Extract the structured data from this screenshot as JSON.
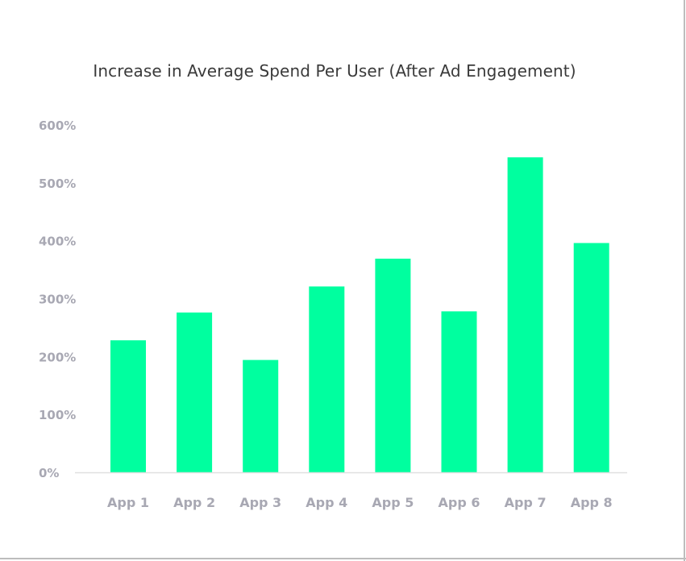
{
  "chart_data": {
    "type": "bar",
    "title": "Increase in Average Spend Per User (After Ad Engagement)",
    "xlabel": "",
    "ylabel": "",
    "categories": [
      "App 1",
      "App 2",
      "App 3",
      "App 4",
      "App 5",
      "App 6",
      "App 7",
      "App 8"
    ],
    "values": [
      228,
      276,
      194,
      321,
      369,
      278,
      544,
      396
    ],
    "yticks": [
      0,
      100,
      200,
      300,
      400,
      500,
      600
    ],
    "ytick_labels": [
      "0%",
      "100%",
      "200%",
      "300%",
      "400%",
      "500%",
      "600%"
    ],
    "ylim": [
      0,
      600
    ],
    "grid": false,
    "legend": "none",
    "bar_color": "#00FF9F",
    "axis_color": "#e0e0e0"
  }
}
